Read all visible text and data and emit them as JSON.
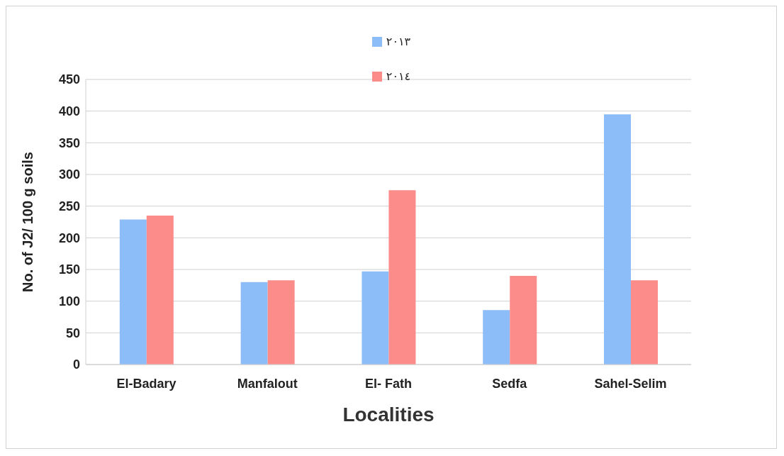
{
  "chart_data": {
    "type": "bar",
    "xlabel": "Localities",
    "ylabel": "No. of J2/ 100 g soils",
    "categories": [
      "El-Badary",
      "Manfalout",
      "El- Fath",
      "Sedfa",
      "Sahel-Selim"
    ],
    "series": [
      {
        "name": "٢٠١٣",
        "color": "#8cbdf8",
        "values": [
          229,
          130,
          147,
          86,
          395
        ]
      },
      {
        "name": "٢٠١٤",
        "color": "#fb8c89",
        "values": [
          235,
          133,
          275,
          140,
          133
        ]
      }
    ],
    "ylim": [
      0,
      450
    ],
    "yticks": [
      0,
      50,
      100,
      150,
      200,
      250,
      300,
      350,
      400,
      450
    ],
    "grid": "y",
    "legend": "top"
  }
}
